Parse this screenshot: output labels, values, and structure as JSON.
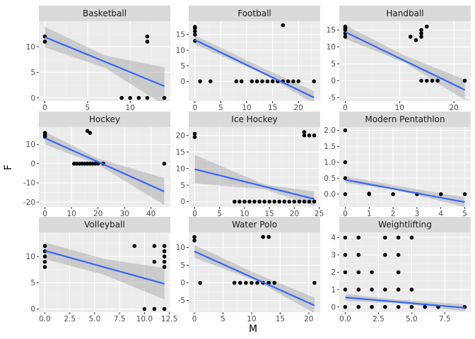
{
  "chart_data": {
    "type": "scatter",
    "xlabel": "M",
    "ylabel": "F",
    "colors": {
      "panel_bg": "#ebebeb",
      "strip_bg": "#d9d9d9",
      "grid_major": "#ffffff",
      "grid_minor": "#f5f5f5",
      "point": "#000000",
      "fit_line": "#3366ff",
      "ribbon": "#999999"
    },
    "panels": [
      {
        "title": "Basketball",
        "xlim": [
          -0.7,
          14.7
        ],
        "ylim": [
          -0.6,
          15.0
        ],
        "xticks": [
          0,
          5,
          10
        ],
        "xtick_labels": [
          "0",
          "5",
          "10"
        ],
        "yticks": [
          0,
          5,
          10
        ],
        "ytick_labels": [
          "0",
          "5",
          "10"
        ],
        "points": [
          [
            0,
            12
          ],
          [
            0,
            11
          ],
          [
            9,
            0
          ],
          [
            10,
            0
          ],
          [
            11,
            0
          ],
          [
            12,
            12
          ],
          [
            12,
            11
          ],
          [
            12,
            0
          ],
          [
            14,
            0
          ]
        ],
        "fit": [
          [
            0,
            11.9
          ],
          [
            14,
            2.3
          ]
        ],
        "band_lower": [
          [
            0,
            9.9
          ],
          [
            7,
            5.9
          ],
          [
            14,
            -1.4
          ]
        ],
        "band_upper": [
          [
            0,
            13.9
          ],
          [
            7,
            8.3
          ],
          [
            14,
            6.0
          ]
        ]
      },
      {
        "title": "Football",
        "xlim": [
          -1.2,
          24.2
        ],
        "ylim": [
          -6.3,
          19.3
        ],
        "xticks": [
          0,
          5,
          10,
          15,
          20
        ],
        "xtick_labels": [
          "0",
          "5",
          "10",
          "15",
          "20"
        ],
        "yticks": [
          0,
          5,
          10,
          15
        ],
        "ytick_labels": [
          "0",
          "5",
          "10",
          "15"
        ],
        "points": [
          [
            0,
            17.5
          ],
          [
            0,
            17
          ],
          [
            0,
            16
          ],
          [
            0,
            15
          ],
          [
            0,
            13
          ],
          [
            1,
            0
          ],
          [
            3,
            0
          ],
          [
            8,
            0
          ],
          [
            9,
            0
          ],
          [
            11,
            0
          ],
          [
            12,
            0
          ],
          [
            13,
            0
          ],
          [
            14,
            0
          ],
          [
            15,
            0
          ],
          [
            16,
            0
          ],
          [
            17,
            0
          ],
          [
            18,
            0
          ],
          [
            19,
            0
          ],
          [
            20,
            0
          ],
          [
            23,
            0
          ],
          [
            17,
            18
          ]
        ],
        "fit": [
          [
            0,
            13.3
          ],
          [
            23,
            -5.2
          ]
        ],
        "band_lower": [
          [
            0,
            11.8
          ],
          [
            13,
            2.6
          ],
          [
            23,
            -7.2
          ]
        ],
        "band_upper": [
          [
            0,
            14.8
          ],
          [
            13,
            4.4
          ],
          [
            23,
            -3.2
          ]
        ]
      },
      {
        "title": "Handball",
        "xlim": [
          -1.1,
          23.1
        ],
        "ylim": [
          -6.0,
          17.6
        ],
        "xticks": [
          0,
          10,
          20
        ],
        "xtick_labels": [
          "0",
          "10",
          "20"
        ],
        "yticks": [
          -5,
          0,
          5,
          10,
          15
        ],
        "ytick_labels": [
          "-5",
          "0",
          "5",
          "10",
          "15"
        ],
        "points": [
          [
            0,
            16
          ],
          [
            0,
            15.5
          ],
          [
            0,
            15
          ],
          [
            0,
            14
          ],
          [
            0,
            13
          ],
          [
            12,
            13
          ],
          [
            13,
            12
          ],
          [
            14,
            15
          ],
          [
            14,
            14
          ],
          [
            14,
            13
          ],
          [
            15,
            16
          ],
          [
            14,
            0
          ],
          [
            15,
            0
          ],
          [
            16,
            0
          ],
          [
            17,
            0
          ],
          [
            22,
            0
          ]
        ],
        "fit": [
          [
            0,
            14.4
          ],
          [
            22,
            -2.7
          ]
        ],
        "band_lower": [
          [
            0,
            12.4
          ],
          [
            11,
            5.3
          ],
          [
            22,
            -5.7
          ]
        ],
        "band_upper": [
          [
            0,
            16.4
          ],
          [
            11,
            7.4
          ],
          [
            22,
            0.3
          ]
        ]
      },
      {
        "title": "Hockey",
        "xlim": [
          -2.3,
          47.3
        ],
        "ylim": [
          -22.5,
          19.0
        ],
        "xticks": [
          0,
          10,
          20,
          30,
          40
        ],
        "xtick_labels": [
          "0",
          "10",
          "20",
          "30",
          "40"
        ],
        "yticks": [
          -20,
          -10,
          0,
          10
        ],
        "ytick_labels": [
          "-20",
          "-10",
          "0",
          "10"
        ],
        "points": [
          [
            0,
            16
          ],
          [
            0,
            15
          ],
          [
            0,
            14
          ],
          [
            11,
            0
          ],
          [
            12,
            0
          ],
          [
            13,
            0
          ],
          [
            14,
            0
          ],
          [
            15,
            0
          ],
          [
            16,
            0
          ],
          [
            17,
            0
          ],
          [
            18,
            0
          ],
          [
            19,
            0
          ],
          [
            20,
            0
          ],
          [
            22,
            0
          ],
          [
            16,
            17
          ],
          [
            17,
            16
          ],
          [
            45,
            0
          ]
        ],
        "fit": [
          [
            0,
            13.3
          ],
          [
            45,
            -14.5
          ]
        ],
        "band_lower": [
          [
            0,
            10.0
          ],
          [
            20,
            -0.5
          ],
          [
            45,
            -21.5
          ]
        ],
        "band_upper": [
          [
            0,
            16.6
          ],
          [
            20,
            2.7
          ],
          [
            45,
            -7.5
          ]
        ]
      },
      {
        "title": "Ice Hockey",
        "xlim": [
          -1.2,
          25.2
        ],
        "ylim": [
          -1.6,
          22.5
        ],
        "xticks": [
          0,
          5,
          10,
          15,
          20,
          25
        ],
        "xtick_labels": [
          "0",
          "5",
          "10",
          "15",
          "20",
          "25"
        ],
        "yticks": [
          0,
          5,
          10,
          15,
          20
        ],
        "ytick_labels": [
          "0",
          "5",
          "10",
          "15",
          "20"
        ],
        "points": [
          [
            0,
            20.5
          ],
          [
            0,
            19.5
          ],
          [
            8,
            0
          ],
          [
            9,
            0
          ],
          [
            10,
            0
          ],
          [
            11,
            0
          ],
          [
            12,
            0
          ],
          [
            13,
            0
          ],
          [
            14,
            0
          ],
          [
            15,
            0
          ],
          [
            16,
            0
          ],
          [
            17,
            0
          ],
          [
            18,
            0
          ],
          [
            19,
            0
          ],
          [
            20,
            0
          ],
          [
            21,
            0
          ],
          [
            22,
            0
          ],
          [
            23,
            0
          ],
          [
            24,
            0
          ],
          [
            22,
            21
          ],
          [
            22,
            20
          ],
          [
            23,
            20
          ],
          [
            24,
            20
          ]
        ],
        "fit": [
          [
            0,
            9.8
          ],
          [
            24,
            0.8
          ]
        ],
        "band_lower": [
          [
            0,
            5.5
          ],
          [
            14,
            3.7
          ],
          [
            24,
            -1.3
          ]
        ],
        "band_upper": [
          [
            0,
            14.1
          ],
          [
            14,
            5.2
          ],
          [
            24,
            3.0
          ]
        ]
      },
      {
        "title": "Modern Pentathlon",
        "xlim": [
          -0.25,
          5.25
        ],
        "ylim": [
          -0.4,
          2.1
        ],
        "xticks": [
          0,
          1,
          2,
          3,
          4,
          5
        ],
        "xtick_labels": [
          "0",
          "1",
          "2",
          "3",
          "4",
          "5"
        ],
        "yticks": [
          0,
          0.5,
          1,
          1.5,
          2
        ],
        "ytick_labels": [
          "0.0",
          "0.5",
          "1.0",
          "1.5",
          "2.0"
        ],
        "points": [
          [
            0,
            2
          ],
          [
            0,
            1
          ],
          [
            0,
            0.5
          ],
          [
            0,
            0
          ],
          [
            1,
            0
          ],
          [
            1,
            0.02
          ],
          [
            2,
            0
          ],
          [
            3,
            0
          ],
          [
            4,
            0
          ],
          [
            5,
            0
          ]
        ],
        "fit": [
          [
            0,
            0.45
          ],
          [
            5,
            -0.25
          ]
        ],
        "band_lower": [
          [
            0,
            0.35
          ],
          [
            2,
            0.15
          ],
          [
            5,
            -0.4
          ]
        ],
        "band_upper": [
          [
            0,
            0.56
          ],
          [
            2,
            0.28
          ],
          [
            5,
            -0.1
          ]
        ]
      },
      {
        "title": "Volleyball",
        "xlim": [
          -0.6,
          12.6
        ],
        "ylim": [
          -0.6,
          14.6
        ],
        "xticks": [
          0,
          2.5,
          5,
          7.5,
          10,
          12.5
        ],
        "xtick_labels": [
          "0.0",
          "2.5",
          "5.0",
          "7.5",
          "10.0",
          "12.5"
        ],
        "yticks": [
          0,
          5,
          10
        ],
        "ytick_labels": [
          "0",
          "5",
          "10"
        ],
        "points": [
          [
            0,
            12
          ],
          [
            0,
            11
          ],
          [
            0,
            10
          ],
          [
            0,
            9
          ],
          [
            0,
            8
          ],
          [
            9,
            12
          ],
          [
            10,
            0
          ],
          [
            11,
            0
          ],
          [
            11,
            12
          ],
          [
            11,
            9
          ],
          [
            12,
            12
          ],
          [
            12,
            11
          ],
          [
            12,
            10
          ],
          [
            12,
            9
          ],
          [
            12,
            8
          ],
          [
            12,
            0
          ]
        ],
        "fit": [
          [
            0,
            11.1
          ],
          [
            12,
            4.8
          ]
        ],
        "band_lower": [
          [
            0,
            9.5
          ],
          [
            6,
            6.5
          ],
          [
            12,
            1.8
          ]
        ],
        "band_upper": [
          [
            0,
            12.7
          ],
          [
            6,
            9.5
          ],
          [
            12,
            7.8
          ]
        ]
      },
      {
        "title": "Water Polo",
        "xlim": [
          -1.0,
          22.0
        ],
        "ylim": [
          -8.3,
          14.3
        ],
        "xticks": [
          0,
          5,
          10,
          15,
          20
        ],
        "xtick_labels": [
          "0",
          "5",
          "10",
          "15",
          "20"
        ],
        "yticks": [
          -5,
          0,
          5,
          10
        ],
        "ytick_labels": [
          "-5",
          "0",
          "5",
          "10"
        ],
        "points": [
          [
            0,
            13
          ],
          [
            0,
            12
          ],
          [
            1,
            0
          ],
          [
            7,
            0
          ],
          [
            8,
            0
          ],
          [
            9,
            0
          ],
          [
            10,
            0
          ],
          [
            11,
            0
          ],
          [
            12,
            0
          ],
          [
            13,
            0
          ],
          [
            14,
            0
          ],
          [
            12,
            13
          ],
          [
            13,
            13
          ],
          [
            21,
            0
          ]
        ],
        "fit": [
          [
            0,
            8.9
          ],
          [
            21,
            -6.4
          ]
        ],
        "band_lower": [
          [
            0,
            7.1
          ],
          [
            11,
            0.4
          ],
          [
            21,
            -8.6
          ]
        ],
        "band_upper": [
          [
            0,
            10.7
          ],
          [
            11,
            2.5
          ],
          [
            21,
            -4.2
          ]
        ]
      },
      {
        "title": "Weightlifting",
        "xlim": [
          -0.45,
          9.45
        ],
        "ylim": [
          -0.3,
          4.3
        ],
        "xticks": [
          0,
          2.5,
          5,
          7.5
        ],
        "xtick_labels": [
          "0.0",
          "2.5",
          "5.0",
          "7.5"
        ],
        "yticks": [
          0,
          1,
          2,
          3,
          4
        ],
        "ytick_labels": [
          "0",
          "1",
          "2",
          "3",
          "4"
        ],
        "points": [
          [
            0,
            4
          ],
          [
            0,
            3
          ],
          [
            0,
            2
          ],
          [
            0,
            1
          ],
          [
            0,
            0
          ],
          [
            1,
            4
          ],
          [
            1,
            3
          ],
          [
            1,
            2
          ],
          [
            1,
            1
          ],
          [
            1,
            0
          ],
          [
            2,
            2
          ],
          [
            2,
            1
          ],
          [
            2,
            0
          ],
          [
            3,
            4
          ],
          [
            3,
            3
          ],
          [
            3,
            1
          ],
          [
            3,
            0
          ],
          [
            4,
            4
          ],
          [
            4,
            3
          ],
          [
            4,
            2
          ],
          [
            4,
            1
          ],
          [
            4,
            0
          ],
          [
            5,
            4
          ],
          [
            5,
            1
          ],
          [
            5,
            0
          ],
          [
            6,
            0
          ],
          [
            7,
            0
          ],
          [
            9,
            0
          ]
        ],
        "fit": [
          [
            0,
            0.55
          ],
          [
            9,
            -0.05
          ]
        ],
        "band_lower": [
          [
            0,
            0.35
          ],
          [
            4,
            0.22
          ],
          [
            9,
            -0.25
          ]
        ],
        "band_upper": [
          [
            0,
            0.75
          ],
          [
            4,
            0.42
          ],
          [
            9,
            0.15
          ]
        ]
      }
    ]
  }
}
